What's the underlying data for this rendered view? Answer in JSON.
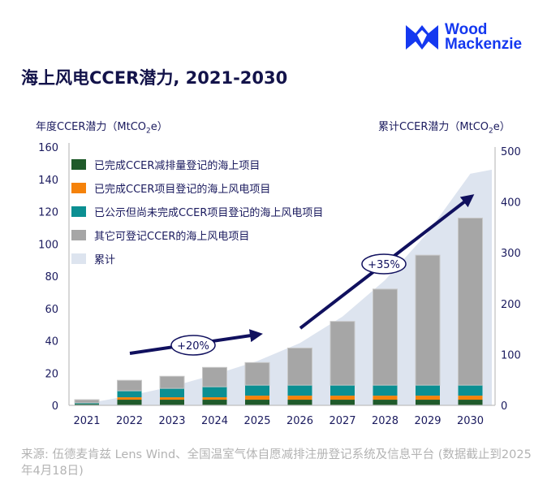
{
  "brand": {
    "line1": "Wood",
    "line2": "Mackenzie",
    "color": "#1438f0"
  },
  "title": "海上风电CCER潜力, 2021-2030",
  "left_axis_title": {
    "prefix": "年度CCER潜力（MtCO",
    "sub": "2",
    "suffix": "e）"
  },
  "right_axis_title": {
    "prefix": "累计CCER潜力（MtCO",
    "sub": "2",
    "suffix": "e）"
  },
  "source": "来源: 伍德麦肯兹 Lens Wind、全国温室气体自愿减排注册登记系统及信息平台 (数据截止到2025年4月18日)",
  "chart_data": {
    "type": "bar",
    "stacked": true,
    "title": "海上风电CCER潜力, 2021-2030",
    "categories": [
      "2021",
      "2022",
      "2023",
      "2024",
      "2025",
      "2026",
      "2027",
      "2028",
      "2029",
      "2030"
    ],
    "ylabel": "年度CCER潜力（MtCO2e）",
    "y2label": "累计CCER潜力（MtCO2e）",
    "ylim": [
      0,
      160
    ],
    "y2lim": [
      0,
      500
    ],
    "yticks": [
      "0",
      "20",
      "40",
      "60",
      "80",
      "100",
      "120",
      "140",
      "160"
    ],
    "y2ticks": [
      "0",
      "100",
      "200",
      "300",
      "400",
      "500"
    ],
    "legend_position": "top-left",
    "series": [
      {
        "name": "已完成CCER减排量登记的海上项目",
        "color": "#1f5a2a",
        "values": [
          0.8,
          3.5,
          3.5,
          3.5,
          3.5,
          3.5,
          3.5,
          3.5,
          3.5,
          3.5
        ]
      },
      {
        "name": "已完成CCER项目登记的海上风电项目",
        "color": "#f5820a",
        "values": [
          0,
          1.5,
          1.5,
          1.5,
          2.5,
          2.5,
          2.5,
          2.5,
          2.5,
          2.5
        ]
      },
      {
        "name": "已公示但尚未完成CCER项目登记的海上风电项目",
        "color": "#0b8f92",
        "values": [
          0.7,
          4,
          5.5,
          6.5,
          6.5,
          6.5,
          6.5,
          6.5,
          6.5,
          6.5
        ]
      },
      {
        "name": "其它可登记CCER的海上风电项目",
        "color": "#a6a6a6",
        "values": [
          2,
          6.5,
          7.5,
          12,
          14,
          23,
          39.5,
          59.5,
          80.5,
          103.5
        ]
      }
    ],
    "cumulative": {
      "name": "累计",
      "color": "#dde4ef",
      "values": [
        3.5,
        19,
        37,
        60.5,
        87,
        122.5,
        174.5,
        246.5,
        339.5,
        455.5
      ]
    },
    "annotations": [
      {
        "text": "+20%",
        "from": "2022",
        "to": "2025"
      },
      {
        "text": "+35%",
        "from": "2026",
        "to": "2030"
      }
    ]
  }
}
